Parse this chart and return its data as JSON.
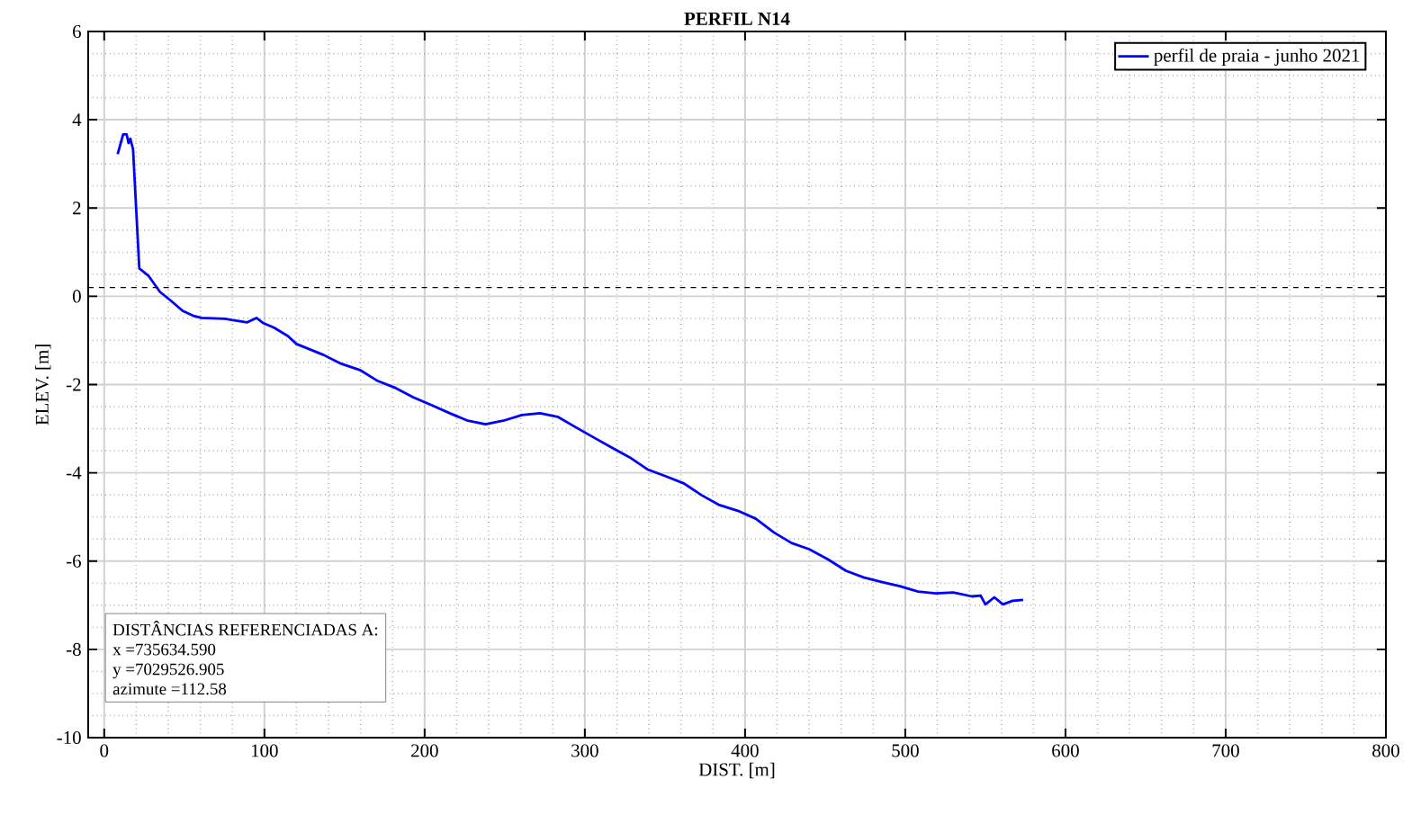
{
  "chart_data": {
    "type": "line",
    "title": "PERFIL N14",
    "xlabel": "DIST. [m]",
    "ylabel": "ELEV. [m]",
    "xlim": [
      -10,
      800
    ],
    "ylim": [
      -10,
      6
    ],
    "xticks": [
      0,
      100,
      200,
      300,
      400,
      500,
      600,
      700,
      800
    ],
    "yticks": [
      -10,
      -8,
      -6,
      -4,
      -2,
      0,
      2,
      4,
      6
    ],
    "grid": true,
    "legend": "top right",
    "ref_lines": [
      {
        "axis": "y",
        "value": 0.2,
        "line_style": "dashed",
        "color": "#000000"
      }
    ],
    "annotations": [
      "DISTÂNCIAS REFERENCIADAS A:",
      "x =735634.590",
      "y =7029526.905",
      "azimute =112.58"
    ],
    "series": [
      {
        "name": "perfil de praia - junho 2021",
        "color": "#0000ff",
        "x": [
          8.4,
          11.8,
          14,
          15.2,
          16.3,
          18,
          21.9,
          27.5,
          34.8,
          41.6,
          48.9,
          56.2,
          60.7,
          75.3,
          89.3,
          95,
          99.4,
          106,
          114.6,
          120,
          137,
          148,
          159.6,
          170.8,
          182,
          193,
          204.5,
          215.7,
          227,
          238,
          249,
          260.7,
          272,
          283,
          294,
          305.6,
          317,
          328,
          339,
          350.6,
          361.8,
          373,
          384,
          395.5,
          406.7,
          418,
          429,
          440,
          451.7,
          463,
          474,
          485,
          496.6,
          508,
          519,
          530,
          541.6,
          547,
          550,
          555.6,
          561,
          567,
          573.6
        ],
        "values": [
          3.22,
          3.67,
          3.67,
          3.47,
          3.57,
          3.33,
          0.63,
          0.47,
          0.1,
          -0.1,
          -0.33,
          -0.45,
          -0.49,
          -0.51,
          -0.59,
          -0.49,
          -0.61,
          -0.71,
          -0.9,
          -1.08,
          -1.33,
          -1.53,
          -1.67,
          -1.92,
          -2.08,
          -2.29,
          -2.47,
          -2.65,
          -2.82,
          -2.9,
          -2.82,
          -2.69,
          -2.65,
          -2.73,
          -2.96,
          -3.2,
          -3.43,
          -3.65,
          -3.92,
          -4.08,
          -4.24,
          -4.51,
          -4.73,
          -4.86,
          -5.04,
          -5.35,
          -5.59,
          -5.73,
          -5.96,
          -6.22,
          -6.37,
          -6.47,
          -6.57,
          -6.69,
          -6.73,
          -6.71,
          -6.8,
          -6.78,
          -6.98,
          -6.82,
          -6.98,
          -6.9,
          -6.88
        ]
      }
    ]
  }
}
